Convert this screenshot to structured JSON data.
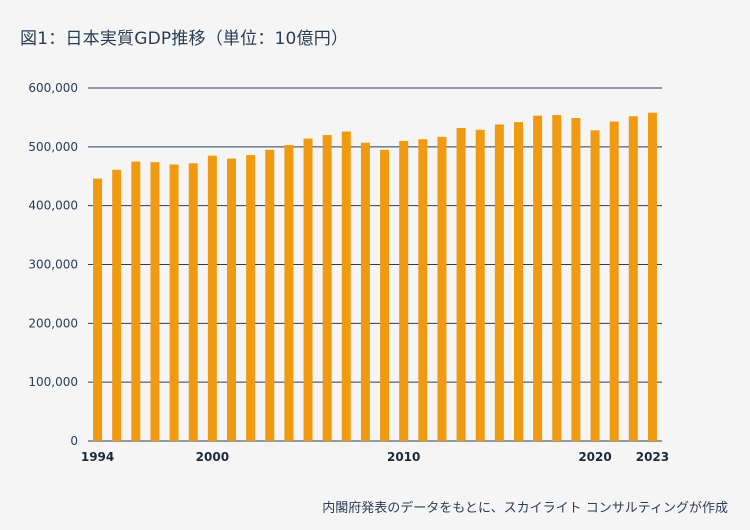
{
  "chart_data": {
    "type": "bar",
    "title": "図1：日本実質GDP推移（単位：10億円）",
    "source_note": "内閣府発表のデータをもとに、スカイライト コンサルティングが作成",
    "categories": [
      "1994",
      "1995",
      "1996",
      "1997",
      "1998",
      "1999",
      "2000",
      "2001",
      "2002",
      "2003",
      "2004",
      "2005",
      "2006",
      "2007",
      "2008",
      "2009",
      "2010",
      "2011",
      "2012",
      "2013",
      "2014",
      "2015",
      "2016",
      "2017",
      "2018",
      "2019",
      "2020",
      "2021",
      "2022",
      "2023"
    ],
    "values": [
      446000,
      461000,
      475000,
      474000,
      470000,
      472000,
      485000,
      480000,
      486000,
      495000,
      503000,
      514000,
      520000,
      526000,
      507000,
      495000,
      510000,
      513000,
      517000,
      532000,
      529000,
      538000,
      542000,
      553000,
      554000,
      549000,
      528000,
      543000,
      552000,
      558000
    ],
    "x_tick_labels": [
      "1994",
      "2000",
      "2010",
      "2020",
      "2023"
    ],
    "y_tick_labels": [
      "0",
      "100,000",
      "200,000",
      "300,000",
      "400,000",
      "500,000",
      "600,000"
    ],
    "y_ticks": [
      0,
      100000,
      200000,
      300000,
      400000,
      500000,
      600000
    ],
    "ylim": [
      0,
      600000
    ],
    "xlabel": "",
    "ylabel": "",
    "grid": true,
    "colors": {
      "bar": "#f09a12",
      "grid": "#2b3d55",
      "text": "#2b3d55",
      "background": "#f5f5f5"
    }
  }
}
